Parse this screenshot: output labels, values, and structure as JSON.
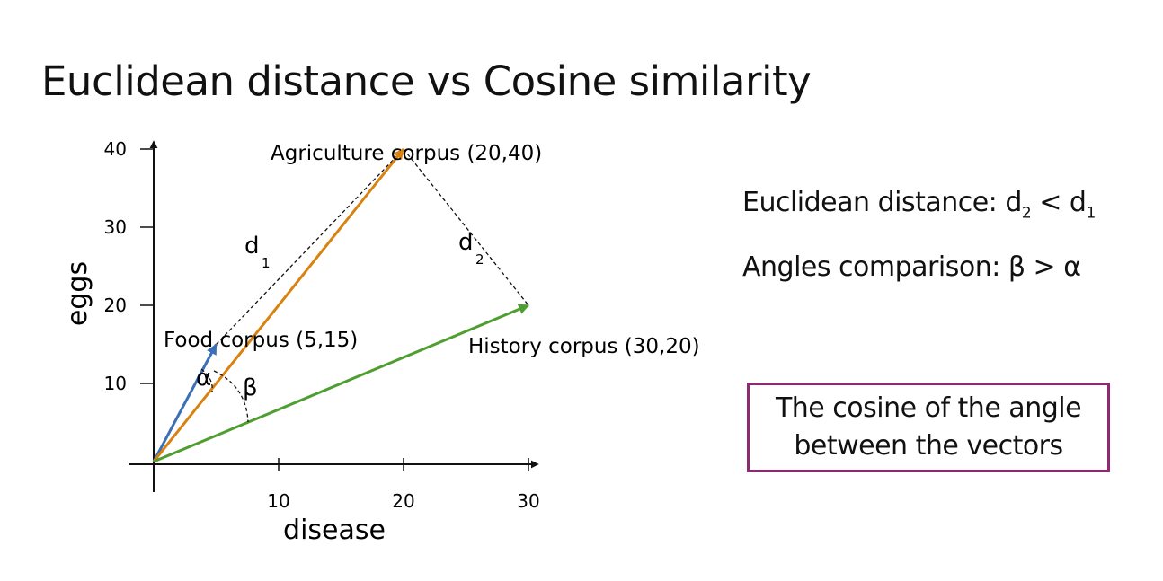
{
  "slide": {
    "title": "Euclidean distance vs Cosine similarity"
  },
  "chart_data": {
    "type": "line",
    "xlabel": "disease",
    "ylabel": "eggs",
    "x_ticks": [
      "10",
      "20",
      "30"
    ],
    "y_ticks": [
      "10",
      "20",
      "30",
      "40"
    ],
    "xlim": [
      0,
      30
    ],
    "ylim": [
      0,
      40
    ],
    "series": [
      {
        "name": "Food corpus (5,15)",
        "x": [
          0,
          5
        ],
        "y": [
          0,
          15
        ],
        "color": "#3b6fb6"
      },
      {
        "name": "Agriculture corpus (20,40)",
        "x": [
          0,
          20
        ],
        "y": [
          0,
          40
        ],
        "color": "#d9820f"
      },
      {
        "name": "History corpus (30,20)",
        "x": [
          0,
          30
        ],
        "y": [
          0,
          20
        ],
        "color": "#4f9e30"
      }
    ],
    "distances": [
      {
        "label": "d",
        "subscript": "1",
        "from": [
          5,
          15
        ],
        "to": [
          20,
          40
        ]
      },
      {
        "label": "d",
        "subscript": "2",
        "from": [
          20,
          40
        ],
        "to": [
          30,
          20
        ]
      }
    ],
    "angles": [
      {
        "label": "α"
      },
      {
        "label": "β"
      }
    ]
  },
  "statements": {
    "euclid_prefix": "Euclidean distance: d",
    "euclid_sub_a": "2",
    "euclid_op": " < d",
    "euclid_sub_b": "1",
    "angles_text": "Angles comparison: β > α"
  },
  "callout": {
    "text": "The cosine of the angle between the vectors"
  },
  "colors": {
    "food": "#3b6fb6",
    "agriculture": "#d9820f",
    "history": "#4f9e30",
    "callout_border": "#8e2a72"
  }
}
